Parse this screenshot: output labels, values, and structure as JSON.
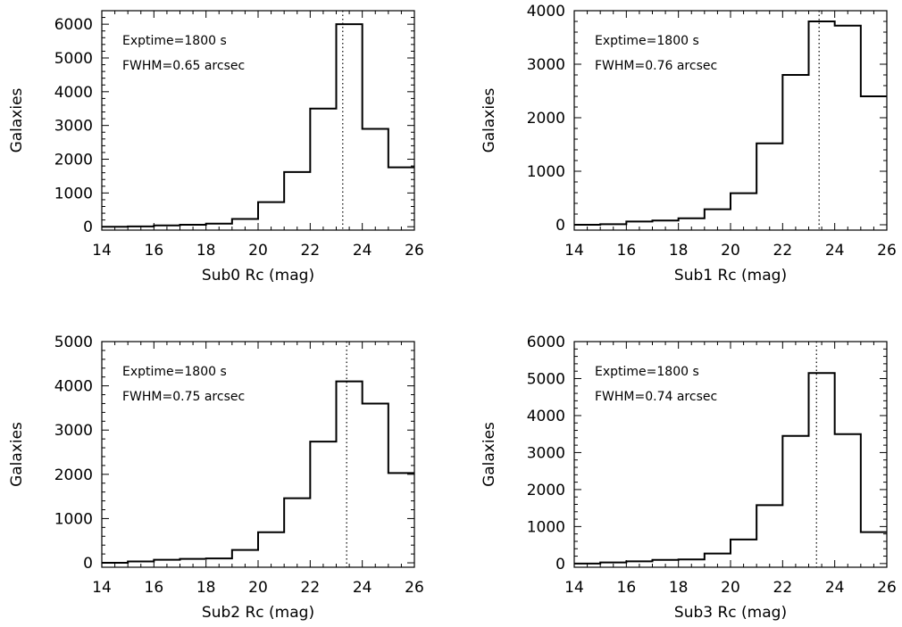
{
  "chart_data": [
    {
      "type": "bar",
      "xlabel": "Sub0 Rc (mag)",
      "ylabel": "Galaxies",
      "xlim": [
        14,
        26
      ],
      "ylim": [
        -100,
        6400
      ],
      "xticks": [
        14,
        16,
        18,
        20,
        22,
        24,
        26
      ],
      "yticks": [
        0,
        1000,
        2000,
        3000,
        4000,
        5000,
        6000
      ],
      "bin_edges": [
        14,
        15,
        16,
        17,
        18,
        19,
        20,
        21,
        22,
        23,
        24,
        25,
        26
      ],
      "values": [
        0,
        10,
        40,
        60,
        90,
        230,
        730,
        1620,
        3500,
        6000,
        2900,
        1760
      ],
      "vline": 23.25,
      "annotations": [
        "Exptime=1800 s",
        "FWHM=0.65 arcsec"
      ]
    },
    {
      "type": "bar",
      "xlabel": "Sub1 Rc (mag)",
      "ylabel": "Galaxies",
      "xlim": [
        14,
        26
      ],
      "ylim": [
        -100,
        4000
      ],
      "xticks": [
        14,
        16,
        18,
        20,
        22,
        24,
        26
      ],
      "yticks": [
        0,
        1000,
        2000,
        3000,
        4000
      ],
      "bin_edges": [
        14,
        15,
        16,
        17,
        18,
        19,
        20,
        21,
        22,
        23,
        24,
        25,
        26
      ],
      "values": [
        0,
        10,
        60,
        80,
        120,
        290,
        590,
        1520,
        2800,
        3800,
        3720,
        2400
      ],
      "vline": 23.4,
      "annotations": [
        "Exptime=1800 s",
        "FWHM=0.76 arcsec"
      ]
    },
    {
      "type": "bar",
      "xlabel": "Sub2 Rc (mag)",
      "ylabel": "Galaxies",
      "xlim": [
        14,
        26
      ],
      "ylim": [
        -100,
        5000
      ],
      "xticks": [
        14,
        16,
        18,
        20,
        22,
        24,
        26
      ],
      "yticks": [
        0,
        1000,
        2000,
        3000,
        4000,
        5000
      ],
      "bin_edges": [
        14,
        15,
        16,
        17,
        18,
        19,
        20,
        21,
        22,
        23,
        24,
        25,
        26
      ],
      "values": [
        0,
        30,
        70,
        90,
        100,
        290,
        690,
        1460,
        2740,
        4100,
        3600,
        2030
      ],
      "vline": 23.4,
      "annotations": [
        "Exptime=1800 s",
        "FWHM=0.75 arcsec"
      ]
    },
    {
      "type": "bar",
      "xlabel": "Sub3 Rc (mag)",
      "ylabel": "Galaxies",
      "xlim": [
        14,
        26
      ],
      "ylim": [
        -100,
        6000
      ],
      "xticks": [
        14,
        16,
        18,
        20,
        22,
        24,
        26
      ],
      "yticks": [
        0,
        1000,
        2000,
        3000,
        4000,
        5000,
        6000
      ],
      "bin_edges": [
        14,
        15,
        16,
        17,
        18,
        19,
        20,
        21,
        22,
        23,
        24,
        25,
        26
      ],
      "values": [
        0,
        30,
        60,
        100,
        110,
        270,
        650,
        1580,
        3450,
        5150,
        3500,
        850
      ],
      "vline": 23.3,
      "annotations": [
        "Exptime=1800 s",
        "FWHM=0.74 arcsec"
      ]
    }
  ]
}
